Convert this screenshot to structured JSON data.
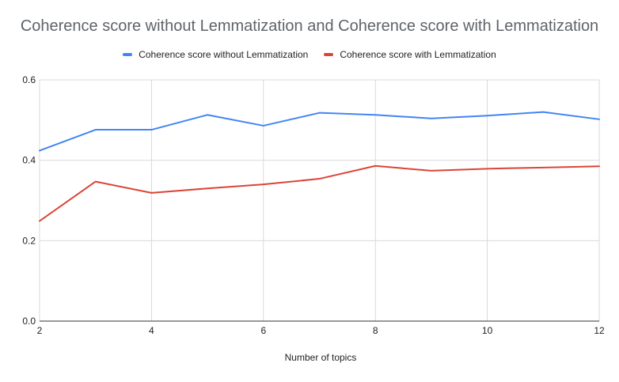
{
  "chart_data": {
    "type": "line",
    "title": "Coherence score without Lemmatization and Coherence score with Lemmatization",
    "xlabel": "Number of topics",
    "ylabel": "",
    "x": [
      2,
      3,
      4,
      5,
      6,
      7,
      8,
      9,
      10,
      11,
      12
    ],
    "xlim": [
      2,
      12
    ],
    "ylim": [
      0,
      0.6
    ],
    "x_ticks": [
      "2",
      "4",
      "6",
      "8",
      "10",
      "12"
    ],
    "y_ticks": [
      "0.0",
      "0.2",
      "0.4",
      "0.6"
    ],
    "grid": true,
    "legend_position": "top",
    "series": [
      {
        "name": "Coherence score without Lemmatization",
        "color": "#4285f4",
        "values": [
          0.424,
          0.476,
          0.476,
          0.513,
          0.486,
          0.518,
          0.513,
          0.504,
          0.511,
          0.52,
          0.502
        ]
      },
      {
        "name": "Coherence score with Lemmatization",
        "color": "#db4437",
        "values": [
          0.249,
          0.347,
          0.319,
          0.33,
          0.34,
          0.354,
          0.386,
          0.374,
          0.379,
          0.382,
          0.385
        ]
      }
    ]
  }
}
